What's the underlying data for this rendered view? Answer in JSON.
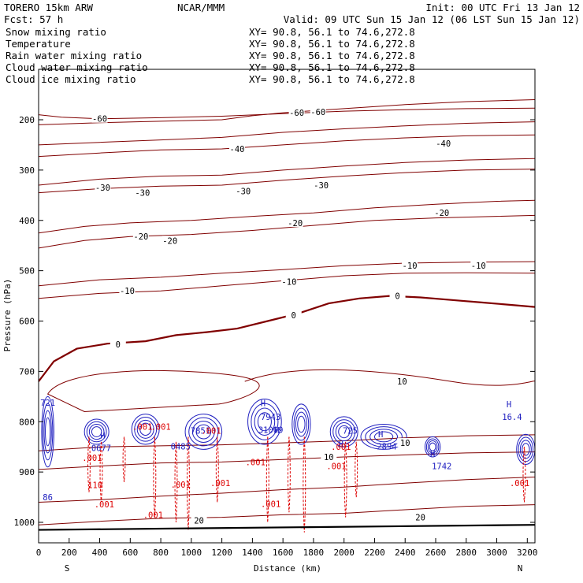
{
  "header": {
    "model": "TORERO  15km ARW",
    "org": "NCAR/MMM",
    "init": "Init: 00 UTC Fri 13 Jan 12",
    "fcst": "Fcst:   57 h",
    "valid": "Valid: 09 UTC Sun 15 Jan 12 (06 LST Sun 15 Jan 12)"
  },
  "colors": {
    "temperature": "#800000",
    "rain": "#dd0000",
    "cloud_water": "#2020c0",
    "black": "#000000"
  },
  "chart_data": {
    "type": "cross-section contour",
    "xlabel": "Distance (km)",
    "ylabel": "Pressure (hPa)",
    "xlim": [
      0,
      3250
    ],
    "ylim": [
      1050,
      100
    ],
    "x_ticks": [
      "0",
      "200",
      "400",
      "600",
      "800",
      "1000",
      "1200",
      "1400",
      "1600",
      "1800",
      "2000",
      "2200",
      "2400",
      "2600",
      "2800",
      "3000",
      "3200"
    ],
    "y_ticks": [
      "200",
      "300",
      "400",
      "500",
      "600",
      "700",
      "800",
      "900",
      "1000"
    ],
    "x_end_labels": {
      "left": "S",
      "right": "N"
    },
    "legend": [
      {
        "label": "Snow mixing ratio",
        "xy": "XY=  90.8, 56.1 to  74.6,272.8",
        "color": "#000000"
      },
      {
        "label": "Temperature",
        "xy": "XY=  90.8, 56.1 to  74.6,272.8",
        "color": "#dd0000"
      },
      {
        "label": "Rain water mixing ratio",
        "xy": "XY=  90.8, 56.1 to  74.6,272.8",
        "color": "#dd0000"
      },
      {
        "label": "Cloud water mixing ratio",
        "xy": "XY=  90.8, 56.1 to  74.6,272.8",
        "color": "#2020c0"
      },
      {
        "label": "Cloud ice mixing ratio",
        "xy": "XY=  90.8, 56.1 to  74.6,272.8",
        "color": "#000000"
      }
    ],
    "temperature_isotherms": [
      {
        "label": "-60",
        "points": [
          [
            0,
            190
          ],
          [
            150,
            195
          ],
          [
            400,
            198
          ],
          [
            800,
            196
          ],
          [
            1200,
            193
          ],
          [
            1600,
            188
          ],
          [
            2000,
            183
          ],
          [
            2400,
            180
          ],
          [
            2800,
            178
          ],
          [
            3250,
            177
          ]
        ]
      },
      {
        "label": "-60",
        "points": [
          [
            0,
            210
          ],
          [
            400,
            206
          ],
          [
            800,
            203
          ],
          [
            1200,
            200
          ],
          [
            1400,
            192
          ],
          [
            1600,
            186
          ],
          [
            2000,
            178
          ],
          [
            2400,
            170
          ],
          [
            2800,
            164
          ],
          [
            3250,
            160
          ]
        ]
      },
      {
        "label": "-40",
        "points": [
          [
            0,
            250
          ],
          [
            400,
            245
          ],
          [
            800,
            240
          ],
          [
            1200,
            235
          ],
          [
            1600,
            225
          ],
          [
            2000,
            218
          ],
          [
            2400,
            212
          ],
          [
            2800,
            207
          ],
          [
            3250,
            204
          ]
        ]
      },
      {
        "label": "-40",
        "points": [
          [
            0,
            273
          ],
          [
            400,
            266
          ],
          [
            800,
            260
          ],
          [
            1200,
            258
          ],
          [
            1600,
            250
          ],
          [
            2000,
            242
          ],
          [
            2400,
            236
          ],
          [
            2800,
            232
          ],
          [
            3250,
            230
          ]
        ]
      },
      {
        "label": "-30",
        "points": [
          [
            0,
            330
          ],
          [
            400,
            318
          ],
          [
            800,
            312
          ],
          [
            1200,
            310
          ],
          [
            1600,
            300
          ],
          [
            2000,
            292
          ],
          [
            2400,
            285
          ],
          [
            2800,
            280
          ],
          [
            3250,
            277
          ]
        ]
      },
      {
        "label": "-30",
        "points": [
          [
            0,
            345
          ],
          [
            400,
            337
          ],
          [
            800,
            332
          ],
          [
            1200,
            330
          ],
          [
            1600,
            320
          ],
          [
            2000,
            312
          ],
          [
            2400,
            305
          ],
          [
            2800,
            300
          ],
          [
            3250,
            298
          ]
        ]
      },
      {
        "label": "-20",
        "points": [
          [
            0,
            425
          ],
          [
            300,
            412
          ],
          [
            600,
            405
          ],
          [
            1000,
            400
          ],
          [
            1400,
            392
          ],
          [
            1800,
            385
          ],
          [
            2200,
            375
          ],
          [
            2600,
            368
          ],
          [
            3000,
            362
          ],
          [
            3250,
            360
          ]
        ]
      },
      {
        "label": "-20",
        "points": [
          [
            0,
            455
          ],
          [
            300,
            440
          ],
          [
            600,
            432
          ],
          [
            1000,
            428
          ],
          [
            1400,
            420
          ],
          [
            1800,
            410
          ],
          [
            2200,
            400
          ],
          [
            2600,
            395
          ],
          [
            3000,
            392
          ],
          [
            3250,
            390
          ]
        ]
      },
      {
        "label": "-10",
        "points": [
          [
            0,
            530
          ],
          [
            400,
            518
          ],
          [
            800,
            513
          ],
          [
            1200,
            505
          ],
          [
            1600,
            498
          ],
          [
            2000,
            490
          ],
          [
            2400,
            485
          ],
          [
            2800,
            483
          ],
          [
            3250,
            482
          ]
        ]
      },
      {
        "label": "-10",
        "points": [
          [
            0,
            555
          ],
          [
            400,
            545
          ],
          [
            800,
            540
          ],
          [
            1200,
            530
          ],
          [
            1600,
            520
          ],
          [
            2000,
            510
          ],
          [
            2400,
            505
          ],
          [
            2800,
            504
          ],
          [
            3250,
            505
          ]
        ]
      },
      {
        "label": "10",
        "points": [
          [
            0,
            858
          ],
          [
            400,
            850
          ],
          [
            800,
            848
          ],
          [
            1200,
            846
          ],
          [
            1600,
            842
          ],
          [
            2000,
            838
          ],
          [
            2400,
            832
          ],
          [
            2800,
            828
          ],
          [
            3250,
            826
          ]
        ]
      },
      {
        "label": "10",
        "points": [
          [
            0,
            895
          ],
          [
            400,
            888
          ],
          [
            800,
            882
          ],
          [
            1200,
            880
          ],
          [
            1600,
            875
          ],
          [
            2000,
            870
          ],
          [
            2400,
            866
          ],
          [
            2800,
            862
          ],
          [
            3250,
            860
          ]
        ]
      },
      {
        "label": "20",
        "points": [
          [
            0,
            960
          ],
          [
            400,
            955
          ],
          [
            800,
            948
          ],
          [
            1200,
            942
          ],
          [
            1600,
            935
          ],
          [
            2000,
            930
          ],
          [
            2400,
            922
          ],
          [
            2800,
            915
          ],
          [
            3250,
            910
          ]
        ]
      },
      {
        "label": "20",
        "points": [
          [
            0,
            1005
          ],
          [
            400,
            998
          ],
          [
            800,
            992
          ],
          [
            1200,
            990
          ],
          [
            1600,
            985
          ],
          [
            2000,
            982
          ],
          [
            2400,
            975
          ],
          [
            2800,
            968
          ],
          [
            3250,
            965
          ]
        ]
      }
    ],
    "zero_isotherm": {
      "label": "0",
      "points": [
        [
          0,
          720
        ],
        [
          100,
          680
        ],
        [
          250,
          655
        ],
        [
          450,
          645
        ],
        [
          700,
          640
        ],
        [
          900,
          628
        ],
        [
          1100,
          622
        ],
        [
          1300,
          615
        ],
        [
          1500,
          600
        ],
        [
          1700,
          585
        ],
        [
          1900,
          565
        ],
        [
          2100,
          555
        ],
        [
          2300,
          550
        ],
        [
          2500,
          553
        ],
        [
          2700,
          558
        ],
        [
          2900,
          563
        ],
        [
          3100,
          568
        ],
        [
          3250,
          572
        ]
      ]
    },
    "isotherm_labels": [
      {
        "text": "-60",
        "x": 400,
        "p": 198
      },
      {
        "text": "-60",
        "x": 1690,
        "p": 186
      },
      {
        "text": "-60",
        "x": 1830,
        "p": 184
      },
      {
        "text": "-40",
        "x": 1300,
        "p": 258
      },
      {
        "text": "-40",
        "x": 2650,
        "p": 247
      },
      {
        "text": "-30",
        "x": 420,
        "p": 335
      },
      {
        "text": "-30",
        "x": 680,
        "p": 345
      },
      {
        "text": "-30",
        "x": 1340,
        "p": 342
      },
      {
        "text": "-30",
        "x": 1850,
        "p": 330
      },
      {
        "text": "-20",
        "x": 2640,
        "p": 385
      },
      {
        "text": "-20",
        "x": 1680,
        "p": 405
      },
      {
        "text": "-20",
        "x": 670,
        "p": 432
      },
      {
        "text": "-20",
        "x": 860,
        "p": 440
      },
      {
        "text": "-10",
        "x": 2430,
        "p": 490
      },
      {
        "text": "-10",
        "x": 2880,
        "p": 490
      },
      {
        "text": "-10",
        "x": 1640,
        "p": 522
      },
      {
        "text": "-10",
        "x": 580,
        "p": 540
      },
      {
        "text": "0",
        "x": 520,
        "p": 646
      },
      {
        "text": "0",
        "x": 1670,
        "p": 588
      },
      {
        "text": "0",
        "x": 2350,
        "p": 550
      },
      {
        "text": "10",
        "x": 2380,
        "p": 720
      },
      {
        "text": "10",
        "x": 2400,
        "p": 842
      },
      {
        "text": "10",
        "x": 1900,
        "p": 870
      },
      {
        "text": "20",
        "x": 1050,
        "p": 996
      },
      {
        "text": "20",
        "x": 2500,
        "p": 990
      }
    ],
    "max_labels": [
      {
        "text": "H",
        "x": 3080,
        "p": 765
      },
      {
        "text": "16.4",
        "x": 3100,
        "p": 790
      },
      {
        "text": "H",
        "x": 1470,
        "p": 763
      },
      {
        "text": "7943",
        "x": 1520,
        "p": 790
      },
      {
        "text": "H",
        "x": 1560,
        "p": 817
      },
      {
        "text": "7851",
        "x": 1060,
        "p": 818
      },
      {
        "text": "H",
        "x": 1980,
        "p": 845
      },
      {
        "text": "725",
        "x": 2040,
        "p": 818
      },
      {
        "text": "H",
        "x": 2240,
        "p": 825
      },
      {
        "text": "2894",
        "x": 2280,
        "p": 849
      },
      {
        "text": "H",
        "x": 2580,
        "p": 863
      },
      {
        "text": "1742",
        "x": 2640,
        "p": 888
      },
      {
        "text": "H",
        "x": 420,
        "p": 827
      },
      {
        "text": "0677",
        "x": 410,
        "p": 852
      },
      {
        "text": "721",
        "x": 60,
        "p": 762
      },
      {
        "text": "86",
        "x": 60,
        "p": 950
      },
      {
        "text": "0485",
        "x": 930,
        "p": 849
      },
      {
        "text": "31009",
        "x": 1520,
        "p": 816
      }
    ],
    "rain_labels": [
      {
        "text": ".001",
        "x": 680,
        "p": 810
      },
      {
        "text": ".001",
        "x": 800,
        "p": 810
      },
      {
        "text": ".001",
        "x": 1130,
        "p": 818
      },
      {
        "text": ".001",
        "x": 350,
        "p": 872
      },
      {
        "text": ".001",
        "x": 1420,
        "p": 880
      },
      {
        "text": ".001",
        "x": 1950,
        "p": 888
      },
      {
        "text": ".001",
        "x": 1190,
        "p": 922
      },
      {
        "text": ".001",
        "x": 930,
        "p": 925
      },
      {
        "text": ".001",
        "x": 1520,
        "p": 963
      },
      {
        "text": ".001",
        "x": 430,
        "p": 964
      },
      {
        "text": ".001",
        "x": 750,
        "p": 985
      },
      {
        "text": ".001",
        "x": 3150,
        "p": 922
      },
      {
        "text": ".001",
        "x": 1980,
        "p": 850
      },
      {
        "text": "110",
        "x": 370,
        "p": 926
      }
    ]
  }
}
